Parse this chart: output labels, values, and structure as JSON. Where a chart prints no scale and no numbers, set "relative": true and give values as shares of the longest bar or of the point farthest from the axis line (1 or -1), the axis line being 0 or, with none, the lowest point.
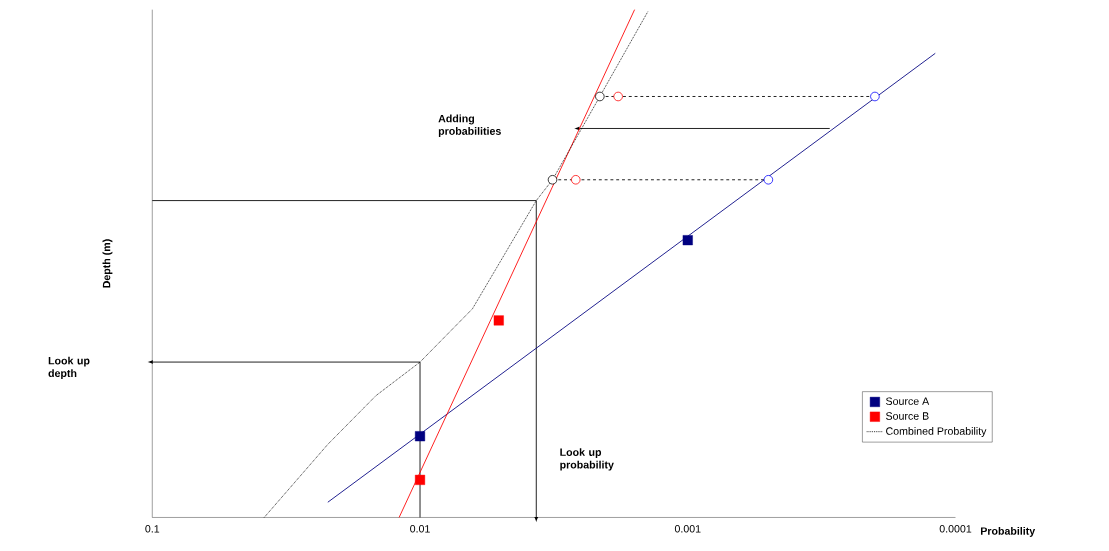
{
  "chart_data": {
    "type": "line",
    "relative": true,
    "log": "x",
    "xlabel": "Probability",
    "ylabel": "Depth (m)",
    "xlim": [
      0.1,
      0.0001
    ],
    "xticks": [
      0.1,
      0.01,
      0.001,
      0.0001
    ],
    "legend": "bottom right",
    "annotations": [
      "Look up depth",
      "Look up probability",
      "Adding probabilities"
    ],
    "series": [
      {
        "color": "#000000",
        "line_style": "solid",
        "x": [
          0.01,
          0.01,
          0.1
        ],
        "values": [
          0,
          0.306,
          0.306
        ]
      },
      {
        "color": "#000000",
        "line_style": "solid",
        "x": [
          0.1,
          0.00368,
          0.00368
        ],
        "values": [
          0.624,
          0.624,
          0
        ]
      },
      {
        "color": "#000000",
        "line_style": "solid",
        "x": [
          0.000295,
          0.00255
        ],
        "values": [
          0.766,
          0.766
        ]
      },
      {
        "type": "line",
        "color": "#000080",
        "line_style": "solid",
        "x": [
          0.0221,
          0.000119
        ],
        "values": [
          0.03,
          0.914
        ]
      },
      {
        "type": "line",
        "color": "#ff0000",
        "line_style": "solid",
        "x": [
          0.01197,
          0.00158
        ],
        "values": [
          0,
          1
        ]
      },
      {
        "type": "line",
        "color": "#000000",
        "line_style": "dashed",
        "x": [
          0.0032,
          0.0005
        ],
        "values": [
          0.665,
          0.665
        ]
      },
      {
        "type": "line",
        "color": "#000000",
        "line_style": "dashed",
        "x": [
          0.00213,
          0.0002
        ],
        "values": [
          0.829,
          0.829
        ]
      },
      {
        "type": "scatter",
        "color": "#0000ff",
        "marker": "circle",
        "x": [
          0.0005,
          0.0002
        ],
        "values": [
          0.665,
          0.829
        ]
      },
      {
        "type": "scatter",
        "color": "#ff0000",
        "marker": "circle",
        "x": [
          0.00262,
          0.00182
        ],
        "values": [
          0.665,
          0.829
        ]
      },
      {
        "type": "scatter",
        "color": "#000000",
        "marker": "circle",
        "x": [
          0.0032,
          0.00213
        ],
        "values": [
          0.665,
          0.829
        ]
      },
      {
        "name": "Source A",
        "type": "scatter",
        "color": "#000080",
        "marker": "square",
        "x": [
          0.01,
          0.001
        ],
        "values": [
          0.16,
          0.546
        ]
      },
      {
        "name": "Source B",
        "type": "scatter",
        "color": "#ff0000",
        "marker": "square",
        "x": [
          0.01,
          0.00508
        ],
        "values": [
          0.074,
          0.388
        ]
      },
      {
        "name": "Combined Probability",
        "type": "line",
        "color": "#000000",
        "line_style": "dotted",
        "x": [
          0.0382,
          0.0221,
          0.0146,
          0.01,
          0.00637,
          0.00368,
          0.0032,
          0.00213,
          0.00141
        ],
        "values": [
          0,
          0.144,
          0.24,
          0.306,
          0.411,
          0.624,
          0.665,
          0.829,
          0.996
        ]
      }
    ]
  }
}
